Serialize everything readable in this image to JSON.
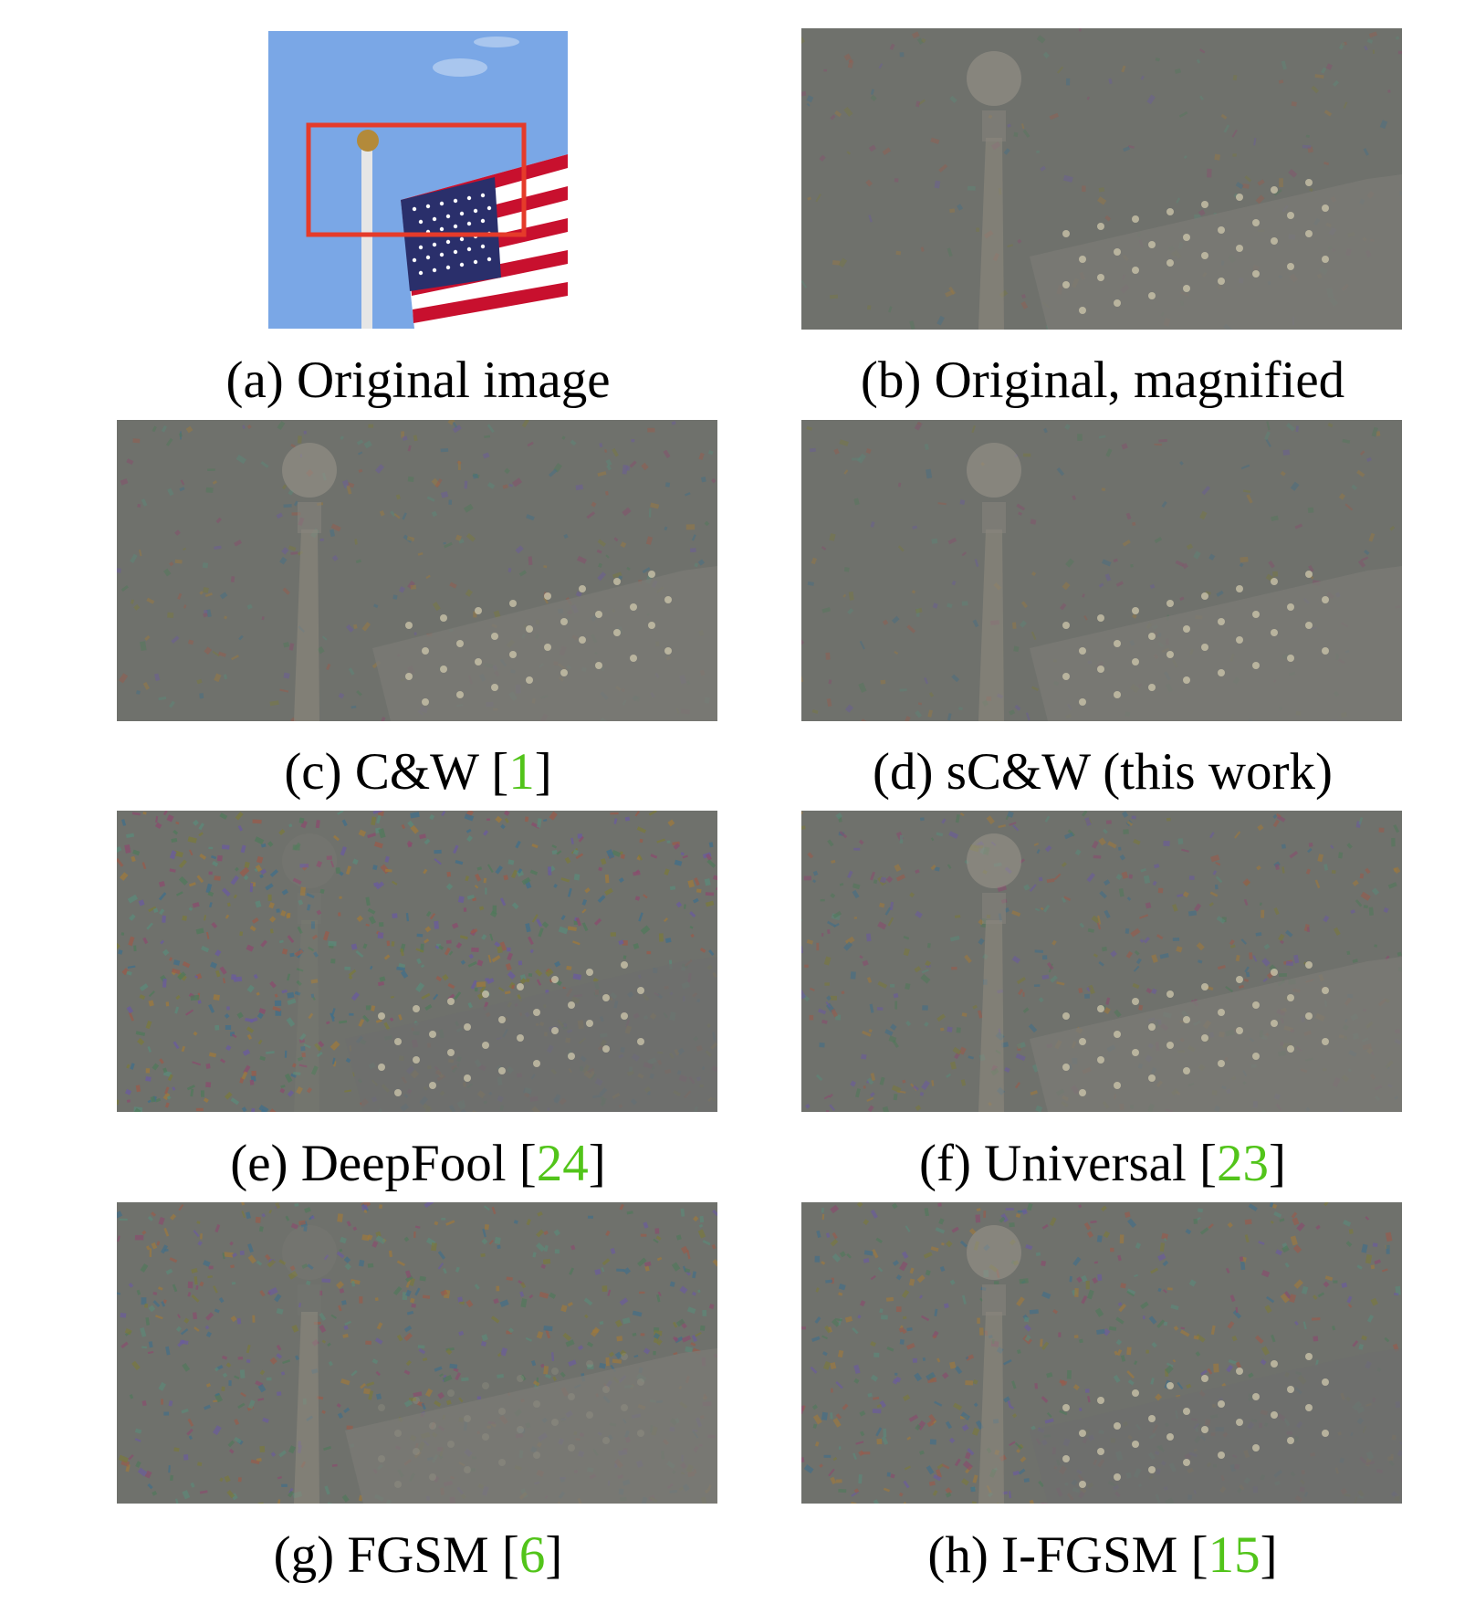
{
  "figure": {
    "panels": [
      {
        "id": "a",
        "caption": "(a) Original image",
        "ref": ""
      },
      {
        "id": "b",
        "caption": "(b) Original, magnified",
        "ref": ""
      },
      {
        "id": "c",
        "caption": "(c) C&W [",
        "ref": "1",
        "close": "]"
      },
      {
        "id": "d",
        "caption": "(d) sC&W (this work)",
        "ref": ""
      },
      {
        "id": "e",
        "caption": "(e) DeepFool [",
        "ref": "24",
        "close": "]"
      },
      {
        "id": "f",
        "caption": "(f) Universal [",
        "ref": "23",
        "close": "]"
      },
      {
        "id": "g",
        "caption": "(g) FGSM [",
        "ref": "6",
        "close": "]"
      },
      {
        "id": "h",
        "caption": "(h) I-FGSM [",
        "ref": "15",
        "close": "]"
      }
    ],
    "colors": {
      "sky": "#7aa7e6",
      "highlight_box": "#e53b2a",
      "citation": "#52c41a",
      "noise_base": "#6f716c"
    }
  }
}
